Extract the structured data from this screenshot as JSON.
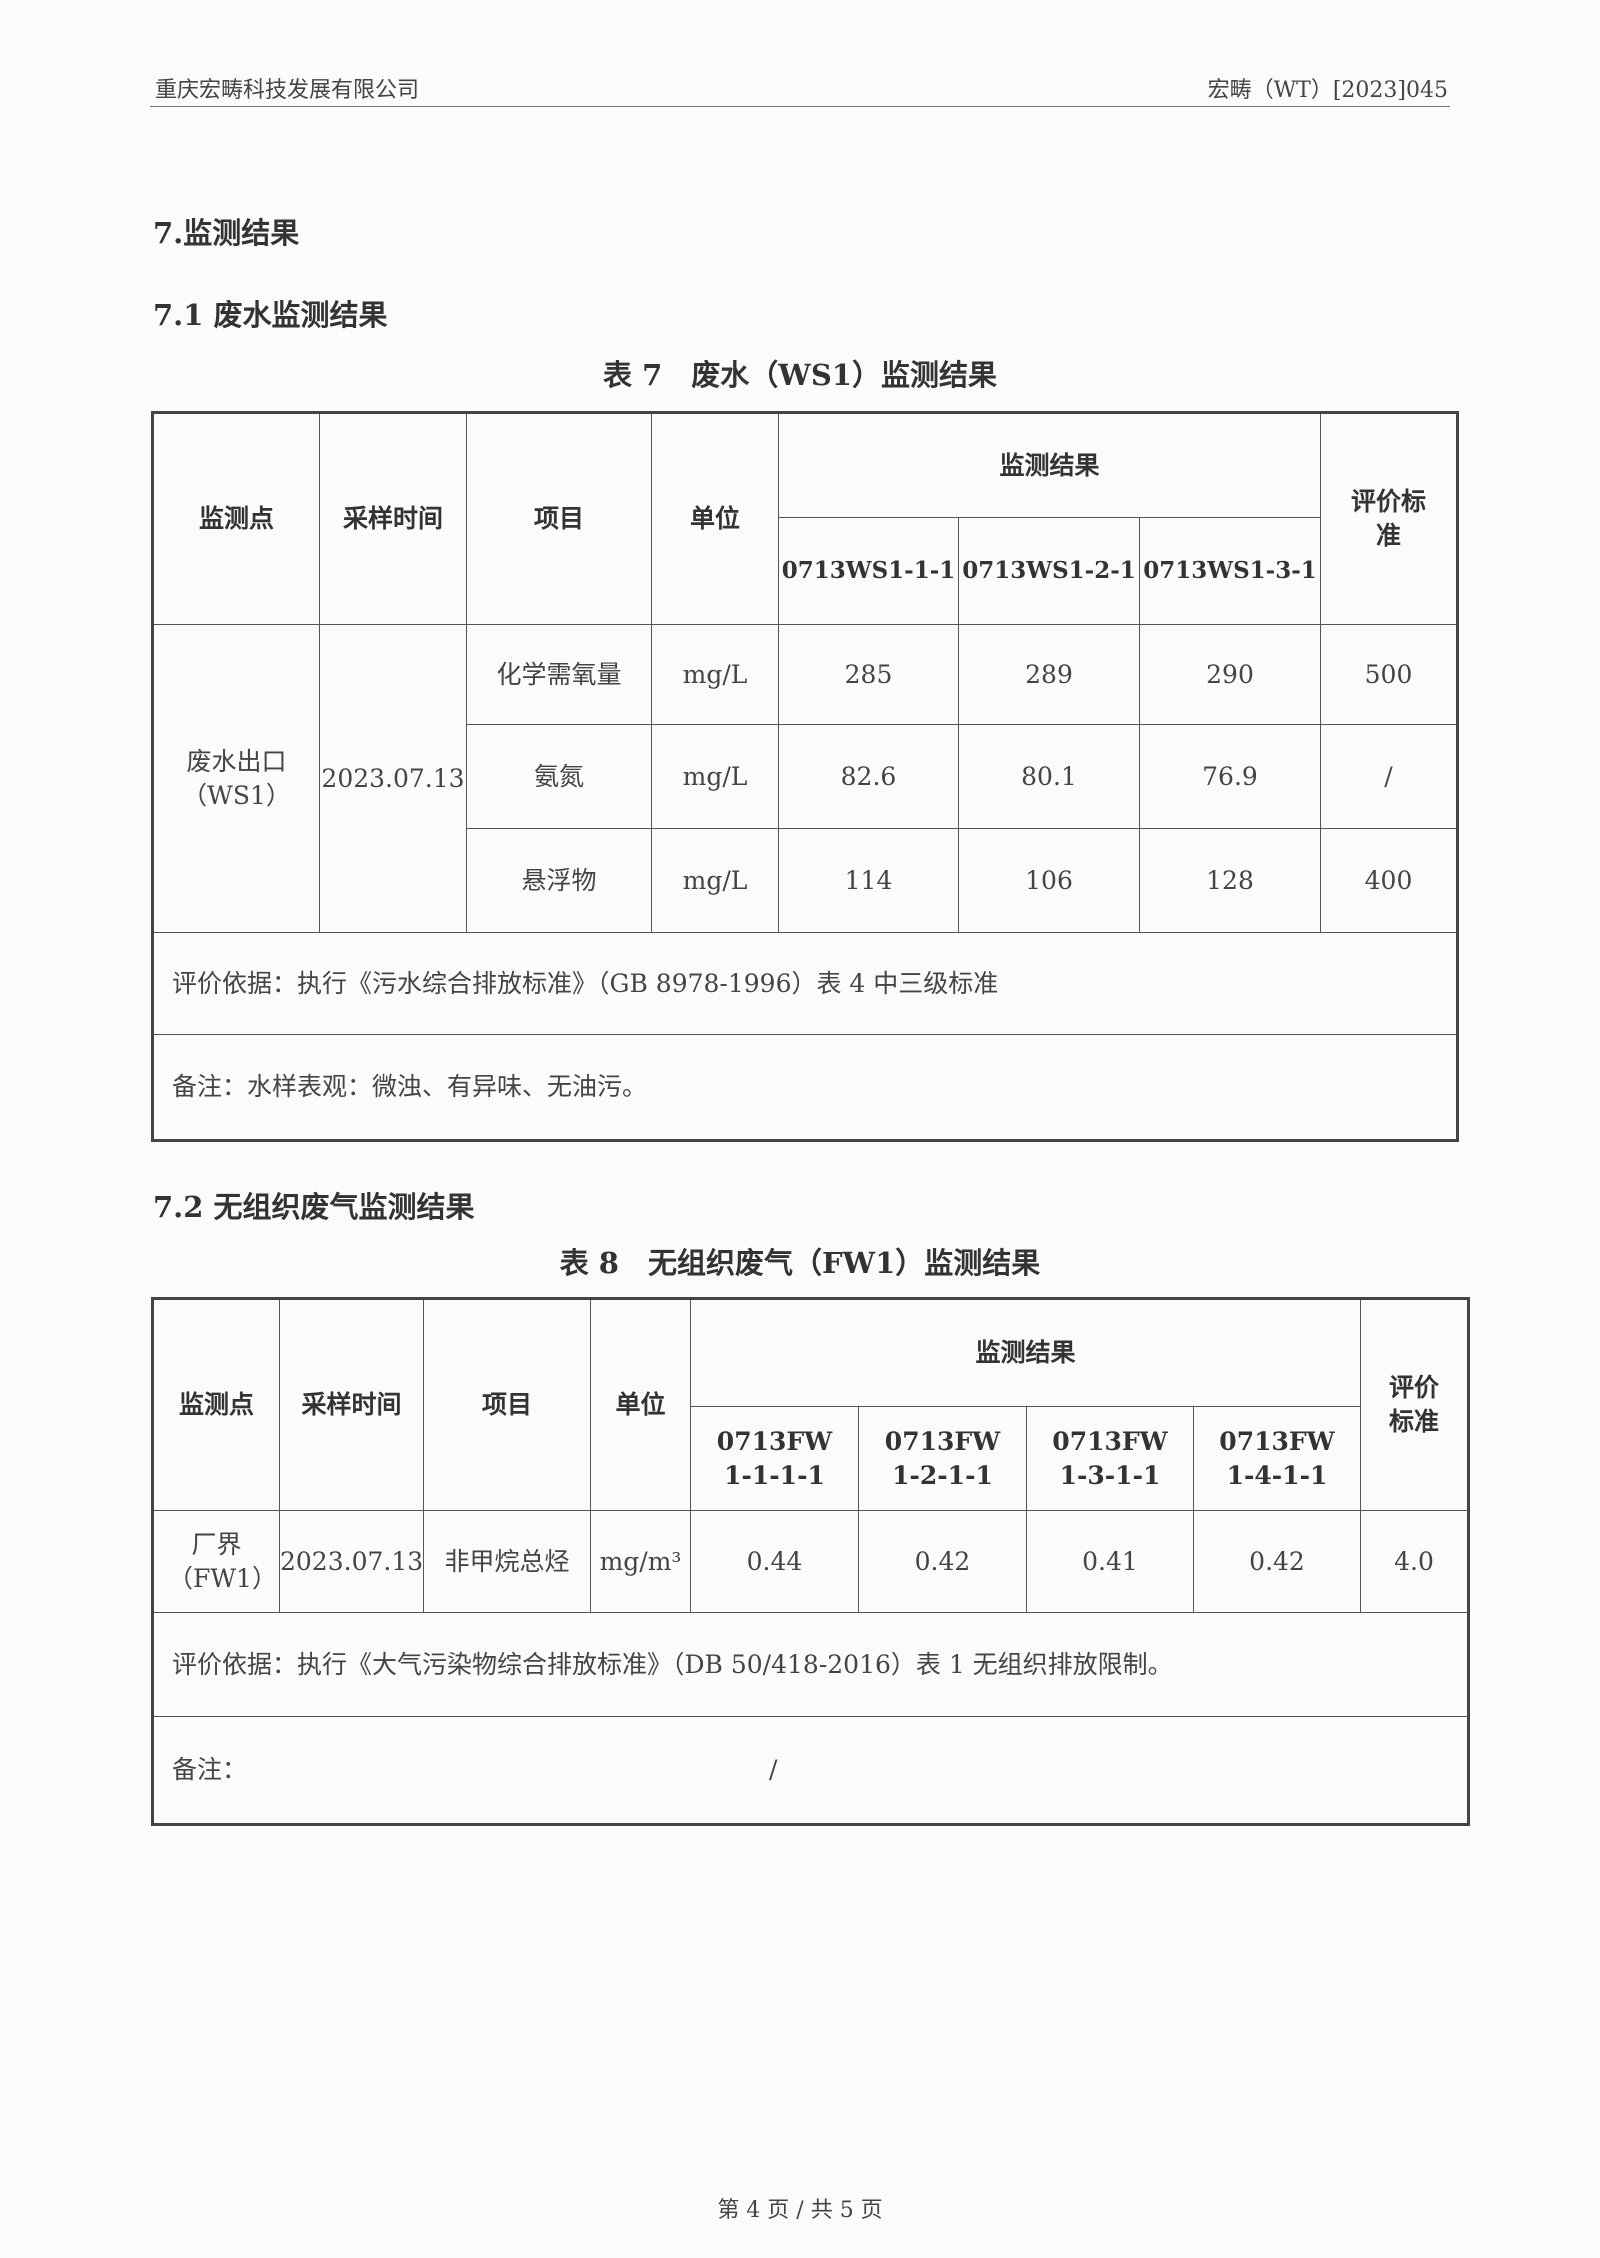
{
  "header": {
    "company": "重庆宏畴科技发展有限公司",
    "report_no": "宏畴（WT）[2023]045"
  },
  "section_title": "7.监测结果",
  "wastewater": {
    "subtitle": "7.1 废水监测结果",
    "caption": "表 7　废水（WS1）监测结果",
    "headers": {
      "point": "监测点",
      "time": "采样时间",
      "item": "项目",
      "unit": "单位",
      "results": "监测结果",
      "standard": "评价标准",
      "samples": [
        "0713WS1-1-1",
        "0713WS1-2-1",
        "0713WS1-3-1"
      ]
    },
    "point": "废水出口（WS1）",
    "time": "2023.07.13",
    "rows": [
      {
        "item": "化学需氧量",
        "unit": "mg/L",
        "values": [
          "285",
          "289",
          "290"
        ],
        "standard": "500"
      },
      {
        "item": "氨氮",
        "unit": "mg/L",
        "values": [
          "82.6",
          "80.1",
          "76.9"
        ],
        "standard": "/"
      },
      {
        "item": "悬浮物",
        "unit": "mg/L",
        "values": [
          "114",
          "106",
          "128"
        ],
        "standard": "400"
      }
    ],
    "basis": "评价依据：执行《污水综合排放标准》（GB 8978-1996）表 4 中三级标准",
    "remark": "备注：水样表观：微浊、有异味、无油污。"
  },
  "fugitive": {
    "subtitle": "7.2 无组织废气监测结果",
    "caption": "表 8　无组织废气（FW1）监测结果",
    "headers": {
      "point": "监测点",
      "time": "采样时间",
      "item": "项目",
      "unit": "单位",
      "results": "监测结果",
      "standard": "评价标准",
      "samples": [
        "0713FW1-1-1-1",
        "0713FW1-2-1-1",
        "0713FW1-3-1-1",
        "0713FW1-4-1-1"
      ]
    },
    "point": "厂界（FW1）",
    "time": "2023.07.13",
    "item": "非甲烷总烃",
    "unit": "mg/m³",
    "values": [
      "0.44",
      "0.42",
      "0.41",
      "0.42"
    ],
    "standard": "4.0",
    "basis": "评价依据：执行《大气污染物综合排放标准》（DB 50/418-2016）表 1 无组织排放限制。",
    "remark_label": "备注：",
    "remark_value": "/"
  },
  "footer": "第 4 页 / 共 5 页"
}
